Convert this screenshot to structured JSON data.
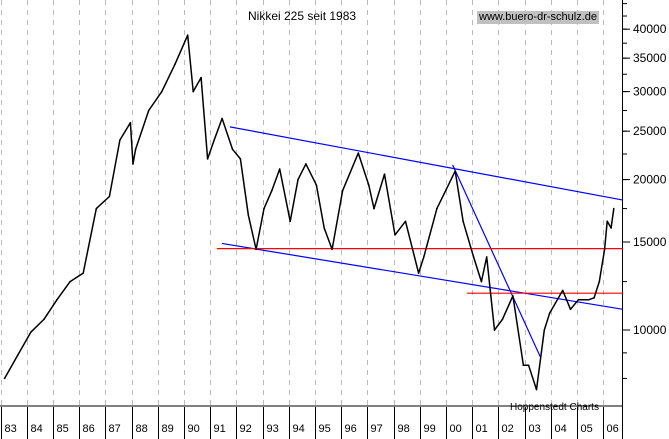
{
  "chart_data": {
    "type": "line",
    "title": "Nikkei 225 seit 1983",
    "source_label": "www.buero-dr-schulz.de",
    "credit": "Hoppenstedt Charts",
    "xlabel": "",
    "ylabel": "",
    "y_scale": "log",
    "xlim": [
      1983.0,
      2006.6
    ],
    "ylim": [
      7000,
      45000
    ],
    "grid": "vertical dashed at years",
    "x_tick_labels": [
      "83",
      "84",
      "85",
      "86",
      "87",
      "88",
      "89",
      "90",
      "91",
      "92",
      "93",
      "94",
      "95",
      "96",
      "97",
      "98",
      "99",
      "00",
      "01",
      "02",
      "03",
      "04",
      "05",
      "06"
    ],
    "y_ticks": [
      10000,
      15000,
      20000,
      25000,
      30000,
      35000,
      40000
    ],
    "y_tick_labels": [
      "10000",
      "15000",
      "20000",
      "25000",
      "30000",
      "35000",
      "40000"
    ],
    "series": [
      {
        "color": "#000000",
        "x": [
          1983.0,
          1983.5,
          1984.0,
          1984.5,
          1985.0,
          1985.5,
          1986.0,
          1986.5,
          1987.0,
          1987.4,
          1987.8,
          1987.9,
          1988.0,
          1988.5,
          1989.0,
          1989.5,
          1989.99,
          1990.2,
          1990.5,
          1990.75,
          1991.0,
          1991.3,
          1991.7,
          1992.0,
          1992.3,
          1992.6,
          1992.9,
          1993.2,
          1993.5,
          1993.9,
          1994.2,
          1994.5,
          1994.9,
          1995.2,
          1995.5,
          1995.9,
          1996.5,
          1996.9,
          1997.1,
          1997.5,
          1997.9,
          1998.3,
          1998.8,
          1999.0,
          1999.5,
          2000.2,
          2000.5,
          2000.9,
          2001.2,
          2001.4,
          2001.7,
          2002.0,
          2002.4,
          2002.8,
          2003.0,
          2003.3,
          2003.6,
          2003.8,
          2004.3,
          2004.6,
          2004.9,
          2005.3,
          2005.5,
          2005.7,
          2005.9,
          2006.0,
          2006.15,
          2006.25
        ],
        "y": [
          8000,
          8900,
          9900,
          10500,
          11500,
          12500,
          13000,
          17500,
          18500,
          24000,
          26000,
          21500,
          23000,
          27500,
          30000,
          34000,
          38900,
          30000,
          32000,
          22000,
          24000,
          26500,
          23000,
          22000,
          17000,
          14500,
          17500,
          19000,
          21000,
          16500,
          20000,
          21500,
          19500,
          16000,
          14500,
          19000,
          22600,
          19500,
          17500,
          20500,
          15500,
          16500,
          13000,
          14000,
          17500,
          20800,
          16500,
          14000,
          12500,
          14000,
          10000,
          10500,
          11700,
          8500,
          8500,
          7600,
          10000,
          10800,
          12000,
          11000,
          11500,
          11500,
          11600,
          12500,
          14500,
          16500,
          16000,
          17500
        ]
      }
    ],
    "trendlines": [
      {
        "color": "#0000ff",
        "from": [
          1991.6,
          25500
        ],
        "to": [
          2006.6,
          18200
        ]
      },
      {
        "color": "#0000ff",
        "from": [
          1991.3,
          14900
        ],
        "to": [
          2006.6,
          11000
        ]
      },
      {
        "color": "#0000ff",
        "from": [
          2000.1,
          21400
        ],
        "to": [
          2003.45,
          8830
        ]
      },
      {
        "color": "#ff0000",
        "from": [
          1991.1,
          14550
        ],
        "to": [
          2006.6,
          14550
        ]
      },
      {
        "color": "#ff0000",
        "from": [
          2000.65,
          11850
        ],
        "to": [
          2006.6,
          11850
        ]
      }
    ]
  }
}
